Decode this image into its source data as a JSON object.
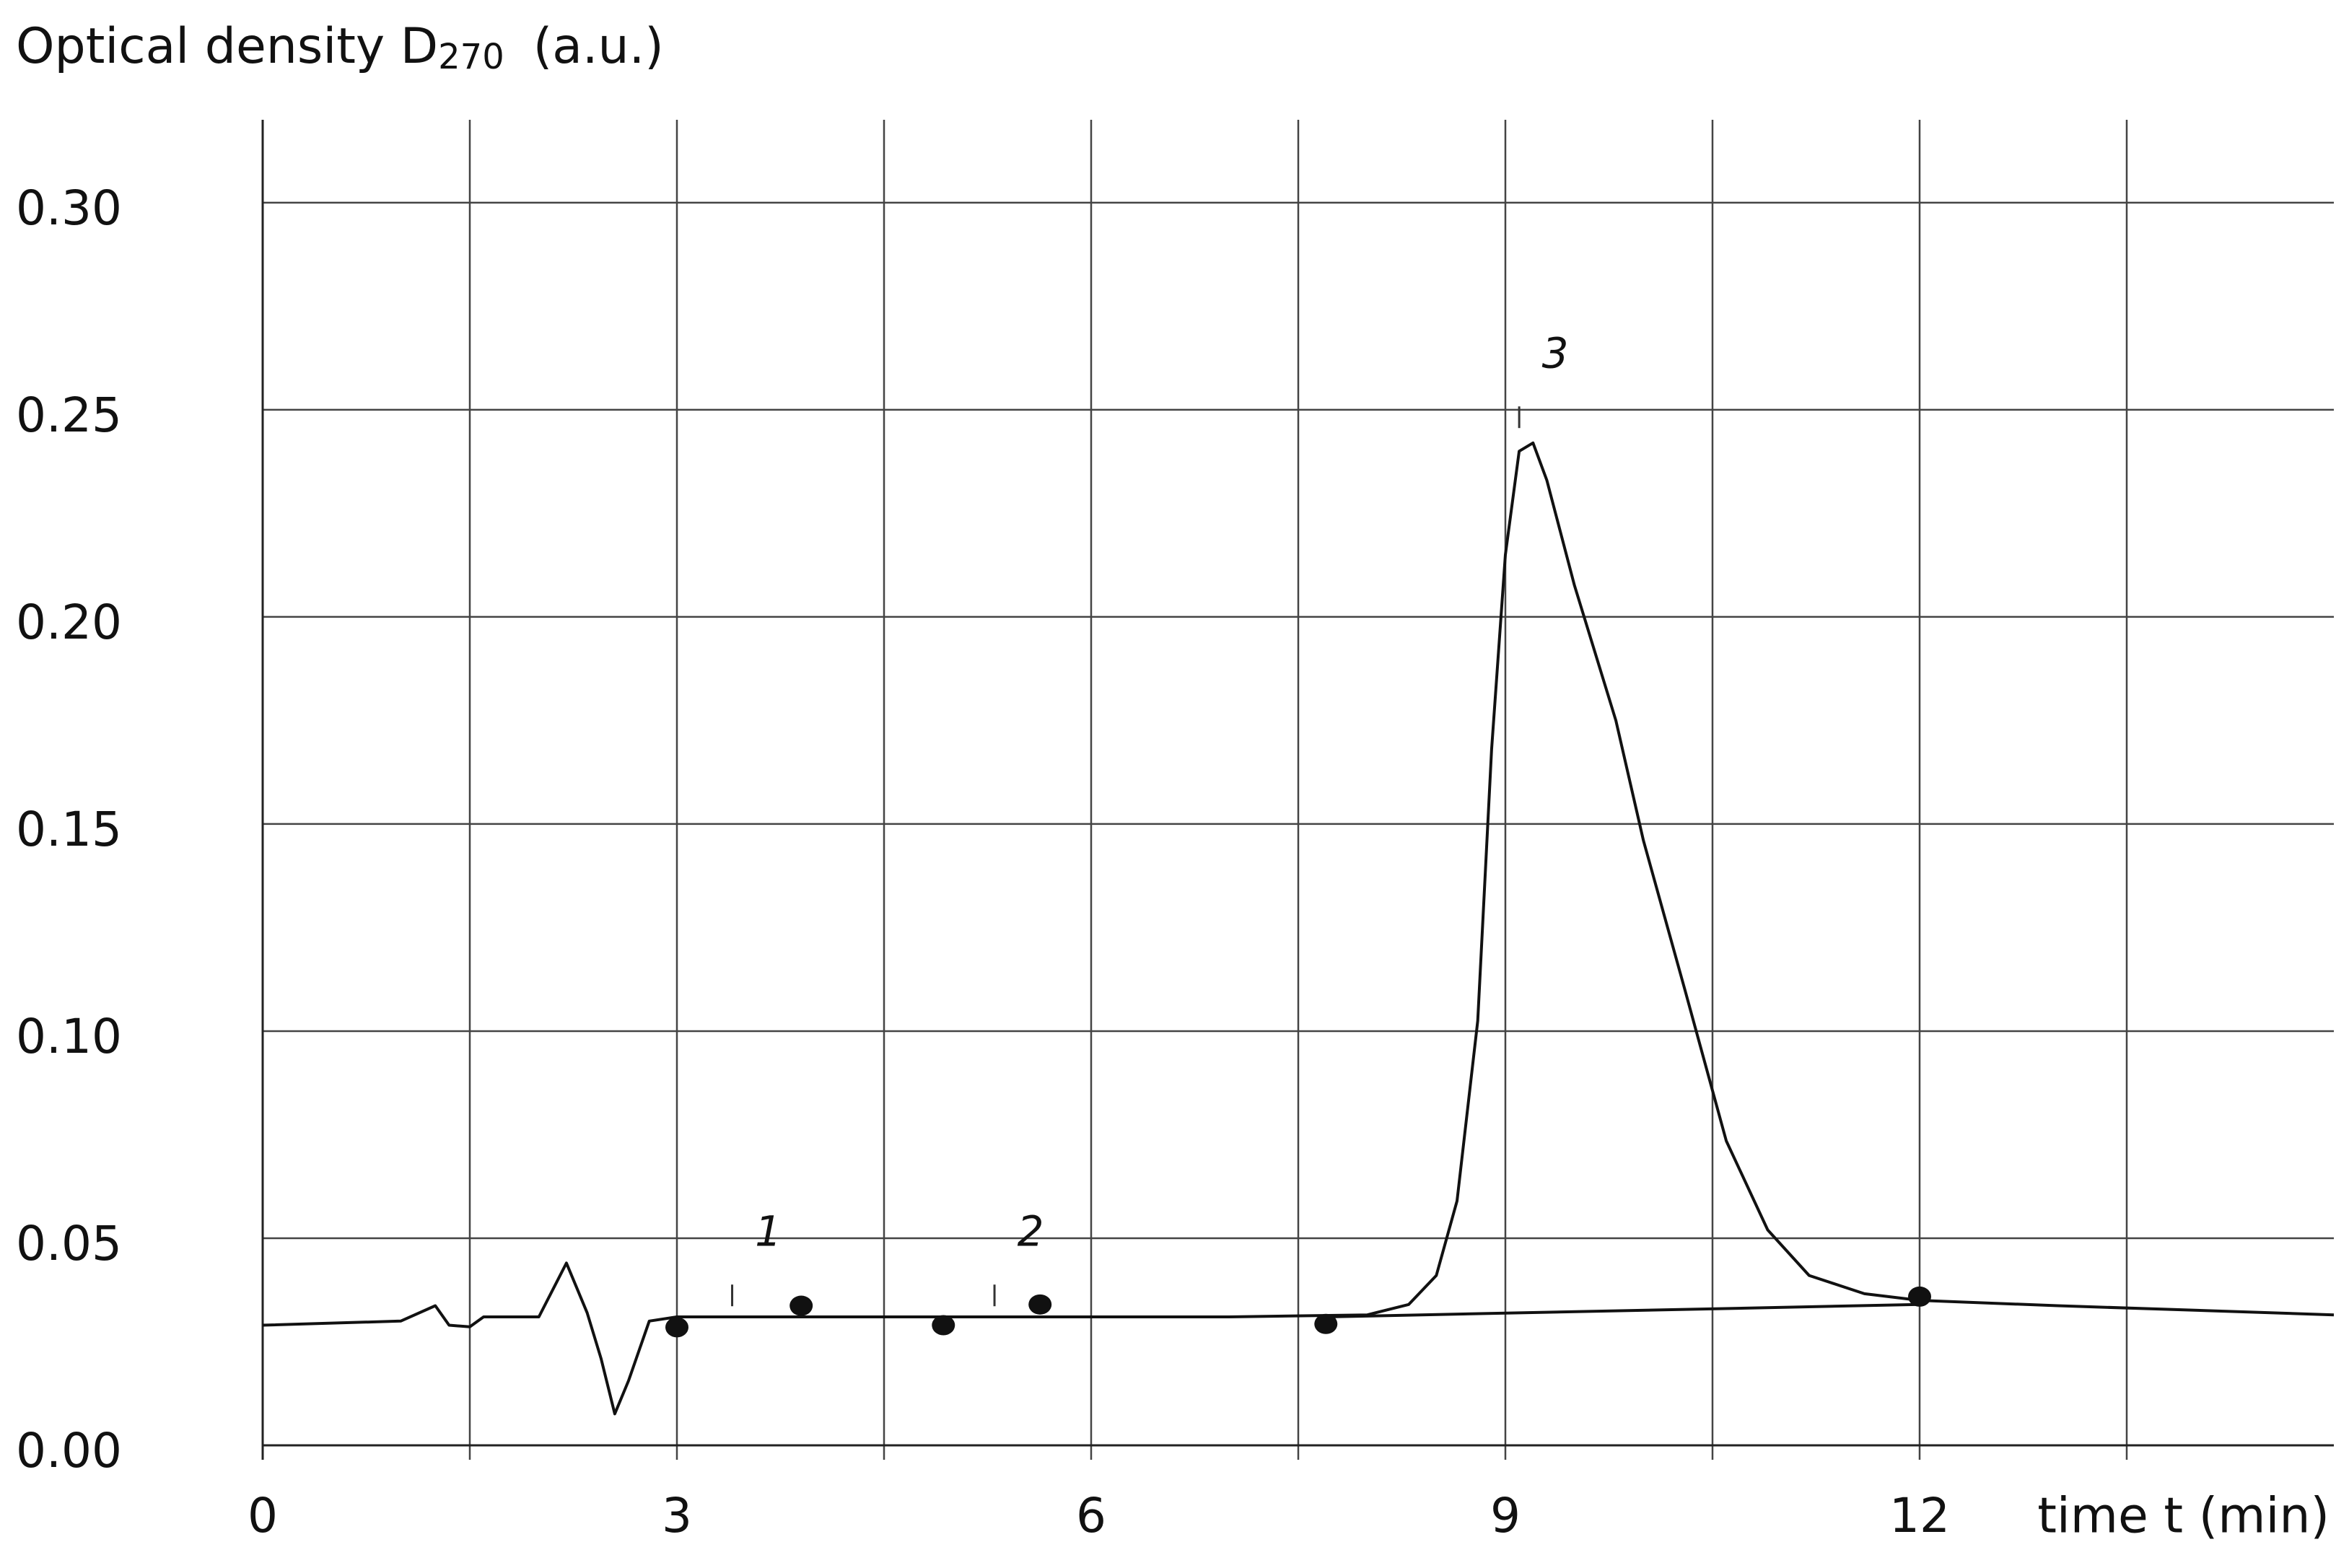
{
  "chart_data": {
    "type": "line",
    "y_label": {
      "main": "Optical density D",
      "sub": "270",
      "unit": "(a.u.)"
    },
    "x_label": "time t (min)",
    "xlim": [
      0,
      15
    ],
    "ylim": [
      0,
      0.32
    ],
    "xticks": [
      0,
      3,
      6,
      9,
      12
    ],
    "xgrid": [
      1.5,
      3,
      4.5,
      6,
      7.5,
      9,
      10.5,
      12,
      13.5
    ],
    "yticks": [
      {
        "value": 0,
        "label": "0.00"
      },
      0.05,
      {
        "value": 0.1,
        "label": "0.10"
      },
      0.15,
      {
        "value": 0.2,
        "label": "0.20"
      },
      0.25,
      {
        "value": 0.3,
        "label": "0.30"
      }
    ],
    "grid": true,
    "series": [
      {
        "type": "line",
        "color": "#111111",
        "x": [
          0,
          1.0,
          1.25,
          1.35,
          1.5,
          1.6,
          2.0,
          2.2,
          2.35,
          2.45,
          2.55,
          2.65,
          2.8,
          3.0,
          4.0,
          5.0,
          6.0,
          7.0,
          8.0,
          8.3,
          8.5,
          8.65,
          8.8,
          8.9,
          9.0,
          9.1,
          9.2,
          9.3,
          9.5,
          9.8,
          10.0,
          10.3,
          10.6,
          10.9,
          11.2,
          11.6,
          12.0,
          13.0,
          15.0
        ],
        "values": [
          0.029,
          0.03,
          0.0337,
          0.029,
          0.0286,
          0.031,
          0.031,
          0.044,
          0.032,
          0.021,
          0.0076,
          0.0156,
          0.03,
          0.031,
          0.031,
          0.031,
          0.031,
          0.031,
          0.0315,
          0.034,
          0.041,
          0.059,
          0.1025,
          0.168,
          0.215,
          0.24,
          0.242,
          0.233,
          0.2076,
          0.175,
          0.146,
          0.11,
          0.0735,
          0.052,
          0.041,
          0.0366,
          0.035,
          0.0337,
          0.0315
        ]
      },
      {
        "type": "line",
        "color": "#111111",
        "x": [
          7.7,
          12.0
        ],
        "values": [
          0.031,
          0.034
        ]
      },
      {
        "type": "scatter",
        "color": "#111111",
        "x": [
          3.0,
          3.9,
          4.93,
          5.63,
          7.7,
          12.0
        ],
        "values": [
          0.0285,
          0.0337,
          0.029,
          0.034,
          0.0293,
          0.0359
        ]
      }
    ],
    "annotations": [
      {
        "text": "1",
        "x": 3.4,
        "y": 0.051
      },
      {
        "text": "2",
        "x": 5.3,
        "y": 0.051
      },
      {
        "text": "3",
        "x": 9.1,
        "y": 0.263
      }
    ]
  }
}
